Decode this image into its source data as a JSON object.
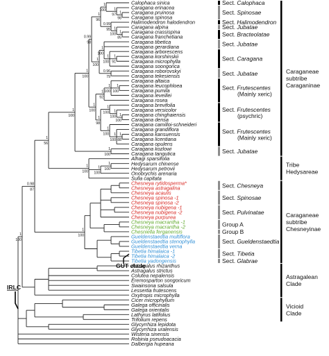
{
  "colors": {
    "default": "#111111",
    "red": "#d7241f",
    "green": "#5fa92b",
    "blue": "#2f8fd6",
    "bar_gray": "#8c8c8c",
    "bar_black": "#000000"
  },
  "taxa": [
    {
      "name": "Calophaca sinica"
    },
    {
      "name": "Caragana erinacea"
    },
    {
      "name": "Caragana pruinosa"
    },
    {
      "name": "Caragana spinosa"
    },
    {
      "name": "Halimodendron halodendron"
    },
    {
      "name": "Caragana alpina"
    },
    {
      "name": "Caragana crassispina"
    },
    {
      "name": "Caragana franchetiana"
    },
    {
      "name": "Caragana tibetica"
    },
    {
      "name": "Caragana gerardiana"
    },
    {
      "name": "Caragana arborescens"
    },
    {
      "name": "Caragana korshinskii"
    },
    {
      "name": "Caragana microphylla"
    },
    {
      "name": "Caragana soongorica"
    },
    {
      "name": "Caragana roborovskyi"
    },
    {
      "name": "Caragana tekesiensis"
    },
    {
      "name": "Caragana altaica"
    },
    {
      "name": "Caragana leucophloea"
    },
    {
      "name": "Caragana pumila"
    },
    {
      "name": "Caragana leveillei"
    },
    {
      "name": "Caragana rosea"
    },
    {
      "name": "Caragana brevifolia"
    },
    {
      "name": "Caragana versicolor"
    },
    {
      "name": "Caragana chinghaiensis"
    },
    {
      "name": "Caragana densa"
    },
    {
      "name": "Caragana camilloi-schneideri"
    },
    {
      "name": "Caragana grandiflora"
    },
    {
      "name": "Caragana kansuensis"
    },
    {
      "name": "Caragana licentiana"
    },
    {
      "name": "Caragana opulens"
    },
    {
      "name": "Caragana kozlowi"
    },
    {
      "name": "Caragana tangutica"
    },
    {
      "name": "Alhagi sparsifolia"
    },
    {
      "name": "Hedysarum chinense"
    },
    {
      "name": "Hedysarum petrovii"
    },
    {
      "name": "Onobrychis arenaria"
    },
    {
      "name": "Sulla capitata"
    },
    {
      "name": "Chesneya rytidosperma*",
      "color": "red"
    },
    {
      "name": "Chesneya astragalina",
      "color": "red"
    },
    {
      "name": "Chesneya acaulis",
      "color": "red"
    },
    {
      "name": "Chesneya spinosa -1",
      "color": "red"
    },
    {
      "name": "Chesneya spinosa -2",
      "color": "red"
    },
    {
      "name": "Chesneya nubigena -1",
      "color": "red"
    },
    {
      "name": "Chesneya nubigena -2",
      "color": "red"
    },
    {
      "name": "Chesneya purpurea",
      "color": "red"
    },
    {
      "name": "Chesneya macrantha -1",
      "color": "green"
    },
    {
      "name": "Chesneya macrantha -2",
      "color": "green"
    },
    {
      "name": "Chesniella ferganensis",
      "color": "green"
    },
    {
      "name": "Gueldenstaedtia multiflora",
      "color": "blue"
    },
    {
      "name": "Gueldenstaedtia stenophylla",
      "color": "blue"
    },
    {
      "name": "Gueldenstaedtia verna",
      "color": "blue"
    },
    {
      "name": "Tibetia himalaica -1",
      "color": "blue"
    },
    {
      "name": "Tibetia himalaica -2",
      "color": "blue"
    },
    {
      "name": "Tibetia yadongensis",
      "color": "blue"
    },
    {
      "name": "Astragalus rhizanthus"
    },
    {
      "name": "Astragalus strictus"
    },
    {
      "name": "Colutea nepalensis"
    },
    {
      "name": "Eremosparton songoricum"
    },
    {
      "name": "Swainsona salsula"
    },
    {
      "name": "Lessertia frutescens"
    },
    {
      "name": "Oxytropis microphylla"
    },
    {
      "name": "Cicer microphyllum"
    },
    {
      "name": "Galega officinalis"
    },
    {
      "name": "Galega orientalis"
    },
    {
      "name": "Lathyrus latifolius"
    },
    {
      "name": "Trifolium repens"
    },
    {
      "name": "Glycyrrhiza lepidota"
    },
    {
      "name": "Glycyrrhiza uralensis"
    },
    {
      "name": "Wisteria sinensis"
    },
    {
      "name": "Robinia pseudoacacia"
    },
    {
      "name": "Dalbergia hupeana"
    }
  ],
  "support_values": [
    {
      "top": "1",
      "bottom": "100"
    },
    {
      "top": "0.98",
      "bottom": "87"
    },
    {
      "top": "1",
      "bottom": "56"
    },
    {
      "top": "1",
      "bottom": "100"
    },
    {
      "top": "1",
      "bottom": "100"
    },
    {
      "top": "0.99",
      "bottom": "98"
    },
    {
      "top": "1",
      "bottom": "96"
    },
    {
      "top": "1",
      "bottom": "100"
    },
    {
      "top": "1",
      "bottom": "97"
    },
    {
      "top": "1",
      "bottom": "98"
    },
    {
      "top": "0.99",
      "bottom": "95"
    },
    {
      "top": "1",
      "bottom": "100"
    },
    {
      "top": "1",
      "bottom": "85"
    },
    {
      "top": "1",
      "bottom": "100"
    },
    {
      "top": "1",
      "bottom": "100"
    },
    {
      "top": "1",
      "bottom": "100"
    },
    {
      "top": "1",
      "bottom": "91"
    },
    {
      "top": "0.96",
      "bottom": "79"
    },
    {
      "top": "1",
      "bottom": "100"
    },
    {
      "top": "1",
      "bottom": "92"
    },
    {
      "top": "1",
      "bottom": "100"
    },
    {
      "top": "1",
      "bottom": "100"
    },
    {
      "top": "1",
      "bottom": "98"
    },
    {
      "top": "1",
      "bottom": "100"
    },
    {
      "top": "1",
      "bottom": "100"
    },
    {
      "top": "1",
      "bottom": "100"
    },
    {
      "top": "1",
      "bottom": "100"
    },
    {
      "top": "1",
      "bottom": "100"
    },
    {
      "top": "1",
      "bottom": "88"
    },
    {
      "top": "1",
      "bottom": "100"
    },
    {
      "top": "1",
      "bottom": "100"
    },
    {
      "top": "1",
      "bottom": "100"
    },
    {
      "top": "1",
      "bottom": "100"
    },
    {
      "top": "1",
      "bottom": "100"
    }
  ],
  "sections": [
    {
      "label": "Sect. ",
      "italic": "Calophaca",
      "from": 0,
      "to": 0,
      "bar": "black"
    },
    {
      "label": "Sect. ",
      "italic": "Spinosae",
      "from": 1,
      "to": 3,
      "bar": "gray"
    },
    {
      "label": "Sect. ",
      "italic": "Halimodendron",
      "from": 4,
      "to": 4,
      "bar": "black"
    },
    {
      "label": "Sect. ",
      "italic": "Jubatae",
      "from": 5,
      "to": 5,
      "bar": "gray"
    },
    {
      "label": "Sect. ",
      "italic": "Bracteolatae",
      "from": 6,
      "to": 7,
      "bar": "black"
    },
    {
      "label": "Sect. ",
      "italic": "Jubatae",
      "from": 8,
      "to": 9,
      "bar": "gray"
    },
    {
      "label": "Sect. ",
      "italic": "Caragana",
      "from": 10,
      "to": 13,
      "bar": "black"
    },
    {
      "label": "Sect. ",
      "italic": "Jubatae",
      "from": 14,
      "to": 15,
      "bar": "gray"
    },
    {
      "label": "Sect. ",
      "italic": "Frutescentes",
      "sub": "(Mainly xeric)",
      "from": 16,
      "to": 20,
      "bar": "black"
    },
    {
      "label": "Sect. ",
      "italic": "Frutescentes",
      "sub": "(psychric)",
      "from": 21,
      "to": 24,
      "bar": "black"
    },
    {
      "label": "Sect. ",
      "italic": "Frutescentes",
      "sub": "(Mainly xeric)",
      "from": 25,
      "to": 29,
      "bar": "black"
    },
    {
      "label": "Sect. ",
      "italic": "Jubatae",
      "from": 30,
      "to": 31,
      "bar": "gray"
    },
    {
      "label": "Sect. ",
      "italic": "Chesneya",
      "from": 37,
      "to": 38,
      "bar": "gray"
    },
    {
      "label": "Sect. ",
      "italic": "Spinosae",
      "from": 39,
      "to": 41,
      "bar": "gray"
    },
    {
      "label": "Sect. ",
      "italic": "Pulvinatae",
      "from": 42,
      "to": 44,
      "bar": "gray"
    },
    {
      "label": "Group A",
      "from": 45,
      "to": 46,
      "bar": "gray"
    },
    {
      "label": "Group B",
      "from": 47,
      "to": 47,
      "bar": "gray"
    },
    {
      "label": "Sect. ",
      "italic": "Gueldenstaedtia",
      "from": 48,
      "to": 50,
      "bar": "gray"
    },
    {
      "label": "Sect. ",
      "italic": "Tibetia",
      "from": 51,
      "to": 52,
      "bar": "gray"
    },
    {
      "label": "Sect. ",
      "italic": "Glabrae",
      "from": 53,
      "to": 53,
      "bar": "gray"
    }
  ],
  "groups": [
    {
      "lines": [
        "Caraganeae",
        "subtribe",
        "Caraganinae"
      ],
      "from": 0,
      "to": 31
    },
    {
      "lines": [
        "Tribe",
        "Hedysareae"
      ],
      "from": 32,
      "to": 36
    },
    {
      "lines": [
        "Caraganeae",
        "subtribe",
        "Chesneyinae"
      ],
      "from": 37,
      "to": 53
    },
    {
      "lines": [
        "Astragalean",
        "Clade"
      ],
      "from": 54,
      "to": 60
    },
    {
      "lines": [
        "Vicioid",
        "Clade"
      ],
      "from": 61,
      "to": 65
    }
  ],
  "clade_labels": {
    "gut": "GUT clade",
    "irlc": "IRLC"
  }
}
